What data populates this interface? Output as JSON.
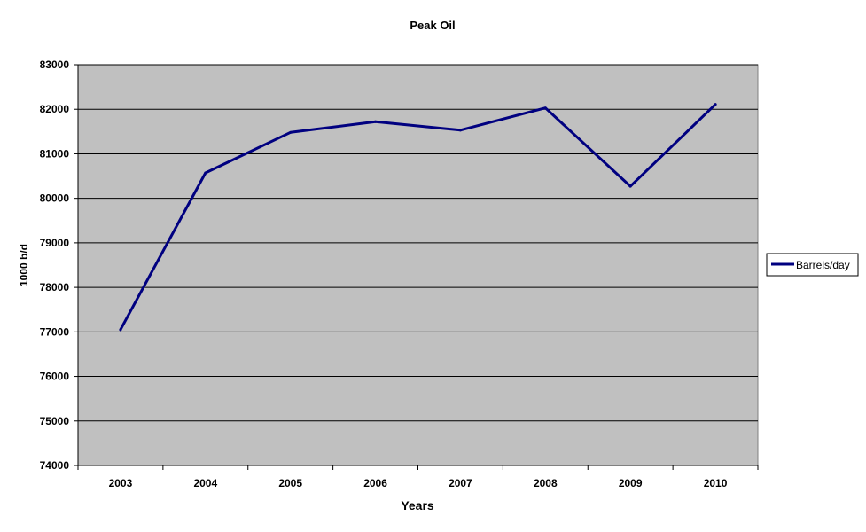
{
  "chart_data": {
    "type": "line",
    "title": "Peak Oil",
    "xlabel": "Years",
    "ylabel": "1000 b/d",
    "categories": [
      "2003",
      "2004",
      "2005",
      "2006",
      "2007",
      "2008",
      "2009",
      "2010"
    ],
    "series": [
      {
        "name": "Barrels/day",
        "values": [
          77050,
          80570,
          81480,
          81720,
          81530,
          82030,
          80270,
          82110
        ],
        "color": "#000080"
      }
    ],
    "ylim": [
      74000,
      83000
    ],
    "yticks": [
      "74000",
      "75000",
      "76000",
      "77000",
      "78000",
      "79000",
      "80000",
      "81000",
      "82000",
      "83000"
    ],
    "grid": true,
    "plot_background": "#c0c0c0",
    "legend_position": "right"
  }
}
